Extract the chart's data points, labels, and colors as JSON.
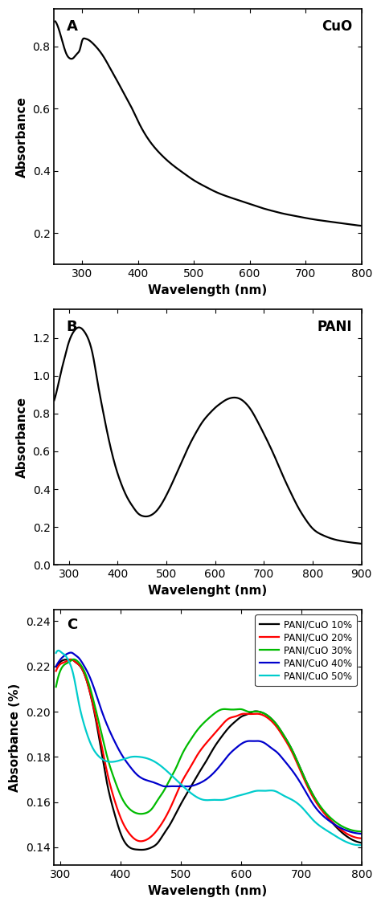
{
  "panel_A": {
    "label": "A",
    "annotation": "CuO",
    "xlabel": "Wavelength (nm)",
    "ylabel": "Absorbance",
    "xlim": [
      250,
      800
    ],
    "ylim": [
      0.1,
      0.92
    ],
    "yticks": [
      0.2,
      0.4,
      0.6,
      0.8
    ],
    "xticks": [
      300,
      400,
      500,
      600,
      700,
      800
    ],
    "x": [
      252,
      260,
      268,
      272,
      276,
      280,
      284,
      288,
      292,
      296,
      300,
      305,
      310,
      320,
      330,
      340,
      350,
      360,
      370,
      380,
      390,
      400,
      420,
      440,
      460,
      480,
      500,
      520,
      540,
      560,
      580,
      600,
      620,
      640,
      660,
      680,
      700,
      720,
      740,
      760,
      780,
      800
    ],
    "y": [
      0.88,
      0.845,
      0.795,
      0.775,
      0.764,
      0.76,
      0.762,
      0.77,
      0.778,
      0.79,
      0.818,
      0.825,
      0.822,
      0.808,
      0.788,
      0.762,
      0.73,
      0.698,
      0.665,
      0.632,
      0.598,
      0.56,
      0.498,
      0.455,
      0.422,
      0.395,
      0.37,
      0.35,
      0.332,
      0.318,
      0.306,
      0.294,
      0.282,
      0.272,
      0.263,
      0.256,
      0.249,
      0.243,
      0.238,
      0.233,
      0.228,
      0.224
    ]
  },
  "panel_B": {
    "label": "B",
    "annotation": "PANI",
    "xlabel": "Wavelenght (nm)",
    "ylabel": "Absorbance",
    "xlim": [
      270,
      900
    ],
    "ylim": [
      0.0,
      1.35
    ],
    "yticks": [
      0.0,
      0.2,
      0.4,
      0.6,
      0.8,
      1.0,
      1.2
    ],
    "xticks": [
      300,
      400,
      500,
      600,
      700,
      800,
      900
    ],
    "x": [
      270,
      278,
      285,
      292,
      298,
      305,
      312,
      320,
      328,
      335,
      342,
      350,
      358,
      368,
      378,
      388,
      398,
      408,
      420,
      432,
      442,
      452,
      462,
      472,
      482,
      492,
      502,
      512,
      522,
      532,
      542,
      552,
      562,
      572,
      582,
      592,
      602,
      612,
      622,
      632,
      642,
      652,
      662,
      672,
      682,
      695,
      710,
      725,
      740,
      755,
      770,
      785,
      800,
      820,
      840,
      860,
      880,
      900
    ],
    "y": [
      0.87,
      0.95,
      1.03,
      1.1,
      1.16,
      1.21,
      1.24,
      1.255,
      1.245,
      1.22,
      1.18,
      1.1,
      0.98,
      0.84,
      0.71,
      0.595,
      0.5,
      0.425,
      0.355,
      0.305,
      0.272,
      0.258,
      0.257,
      0.268,
      0.292,
      0.33,
      0.378,
      0.432,
      0.49,
      0.548,
      0.605,
      0.658,
      0.705,
      0.748,
      0.782,
      0.81,
      0.835,
      0.855,
      0.872,
      0.882,
      0.884,
      0.876,
      0.856,
      0.825,
      0.782,
      0.718,
      0.64,
      0.555,
      0.465,
      0.382,
      0.305,
      0.242,
      0.192,
      0.158,
      0.138,
      0.126,
      0.118,
      0.112
    ]
  },
  "panel_C": {
    "label": "C",
    "xlabel": "Wavelength (nm)",
    "ylabel": "Absorbance (%)",
    "xlim": [
      290,
      800
    ],
    "ylim": [
      0.132,
      0.245
    ],
    "yticks": [
      0.14,
      0.16,
      0.18,
      0.2,
      0.22,
      0.24
    ],
    "xticks": [
      300,
      400,
      500,
      600,
      700,
      800
    ],
    "series": [
      {
        "label": "PANI/CuO 10%",
        "color": "#000000",
        "x": [
          293,
          300,
          308,
          315,
          320,
          325,
          330,
          338,
          348,
          358,
          368,
          378,
          390,
          402,
          415,
          428,
          440,
          452,
          462,
          472,
          482,
          492,
          502,
          515,
          528,
          542,
          555,
          568,
          580,
          592,
          602,
          612,
          620,
          630,
          640,
          650,
          660,
          670,
          685,
          700,
          720,
          745,
          770,
          800
        ],
        "y": [
          0.22,
          0.222,
          0.223,
          0.223,
          0.223,
          0.222,
          0.221,
          0.218,
          0.21,
          0.198,
          0.183,
          0.168,
          0.155,
          0.145,
          0.14,
          0.139,
          0.139,
          0.14,
          0.142,
          0.146,
          0.15,
          0.155,
          0.16,
          0.166,
          0.172,
          0.178,
          0.184,
          0.189,
          0.193,
          0.196,
          0.198,
          0.199,
          0.2,
          0.2,
          0.199,
          0.197,
          0.194,
          0.19,
          0.183,
          0.174,
          0.163,
          0.153,
          0.146,
          0.142
        ]
      },
      {
        "label": "PANI/CuO 20%",
        "color": "#ff0000",
        "x": [
          293,
          300,
          308,
          315,
          320,
          325,
          330,
          338,
          348,
          358,
          368,
          378,
          390,
          402,
          415,
          428,
          440,
          452,
          462,
          472,
          482,
          492,
          502,
          515,
          528,
          542,
          555,
          568,
          580,
          592,
          602,
          612,
          620,
          630,
          640,
          650,
          660,
          670,
          685,
          700,
          720,
          745,
          770,
          800
        ],
        "y": [
          0.218,
          0.221,
          0.222,
          0.223,
          0.223,
          0.222,
          0.221,
          0.218,
          0.21,
          0.199,
          0.186,
          0.173,
          0.161,
          0.152,
          0.146,
          0.143,
          0.143,
          0.145,
          0.148,
          0.152,
          0.157,
          0.163,
          0.169,
          0.175,
          0.181,
          0.186,
          0.19,
          0.194,
          0.197,
          0.198,
          0.199,
          0.199,
          0.199,
          0.199,
          0.198,
          0.196,
          0.193,
          0.189,
          0.182,
          0.173,
          0.162,
          0.153,
          0.147,
          0.144
        ]
      },
      {
        "label": "PANI/CuO 30%",
        "color": "#00bb00",
        "x": [
          293,
          300,
          308,
          315,
          320,
          325,
          330,
          338,
          348,
          358,
          368,
          378,
          390,
          402,
          415,
          428,
          440,
          452,
          462,
          472,
          482,
          492,
          502,
          515,
          528,
          542,
          555,
          568,
          580,
          592,
          602,
          612,
          620,
          630,
          640,
          650,
          660,
          670,
          685,
          700,
          720,
          745,
          770,
          800
        ],
        "y": [
          0.211,
          0.218,
          0.221,
          0.222,
          0.223,
          0.223,
          0.222,
          0.219,
          0.212,
          0.202,
          0.191,
          0.18,
          0.17,
          0.162,
          0.157,
          0.155,
          0.155,
          0.157,
          0.161,
          0.165,
          0.17,
          0.175,
          0.181,
          0.187,
          0.192,
          0.196,
          0.199,
          0.201,
          0.201,
          0.201,
          0.201,
          0.2,
          0.2,
          0.2,
          0.199,
          0.197,
          0.194,
          0.19,
          0.183,
          0.174,
          0.163,
          0.154,
          0.149,
          0.147
        ]
      },
      {
        "label": "PANI/CuO 40%",
        "color": "#0000cc",
        "x": [
          293,
          300,
          308,
          315,
          320,
          325,
          330,
          338,
          348,
          358,
          368,
          378,
          390,
          402,
          415,
          428,
          440,
          452,
          462,
          472,
          482,
          492,
          502,
          515,
          528,
          542,
          555,
          568,
          580,
          592,
          602,
          612,
          620,
          630,
          640,
          650,
          660,
          670,
          685,
          700,
          720,
          745,
          770,
          800
        ],
        "y": [
          0.22,
          0.223,
          0.225,
          0.226,
          0.226,
          0.225,
          0.224,
          0.221,
          0.216,
          0.209,
          0.201,
          0.194,
          0.187,
          0.181,
          0.176,
          0.172,
          0.17,
          0.169,
          0.168,
          0.167,
          0.167,
          0.167,
          0.167,
          0.167,
          0.168,
          0.17,
          0.173,
          0.177,
          0.181,
          0.184,
          0.186,
          0.187,
          0.187,
          0.187,
          0.186,
          0.184,
          0.182,
          0.179,
          0.174,
          0.168,
          0.159,
          0.152,
          0.148,
          0.146
        ]
      },
      {
        "label": "PANI/CuO 50%",
        "color": "#00cccc",
        "x": [
          293,
          298,
          303,
          308,
          313,
          318,
          323,
          330,
          340,
          352,
          365,
          378,
          392,
          405,
          418,
          432,
          448,
          462,
          476,
          492,
          508,
          522,
          538,
          555,
          570,
          585,
          598,
          612,
          626,
          640,
          655,
          670,
          685,
          700,
          720,
          745,
          770,
          800
        ],
        "y": [
          0.226,
          0.227,
          0.226,
          0.225,
          0.223,
          0.22,
          0.215,
          0.205,
          0.194,
          0.185,
          0.18,
          0.178,
          0.178,
          0.179,
          0.18,
          0.18,
          0.179,
          0.177,
          0.174,
          0.17,
          0.166,
          0.163,
          0.161,
          0.161,
          0.161,
          0.162,
          0.163,
          0.164,
          0.165,
          0.165,
          0.165,
          0.163,
          0.161,
          0.158,
          0.152,
          0.147,
          0.143,
          0.141
        ]
      }
    ]
  }
}
